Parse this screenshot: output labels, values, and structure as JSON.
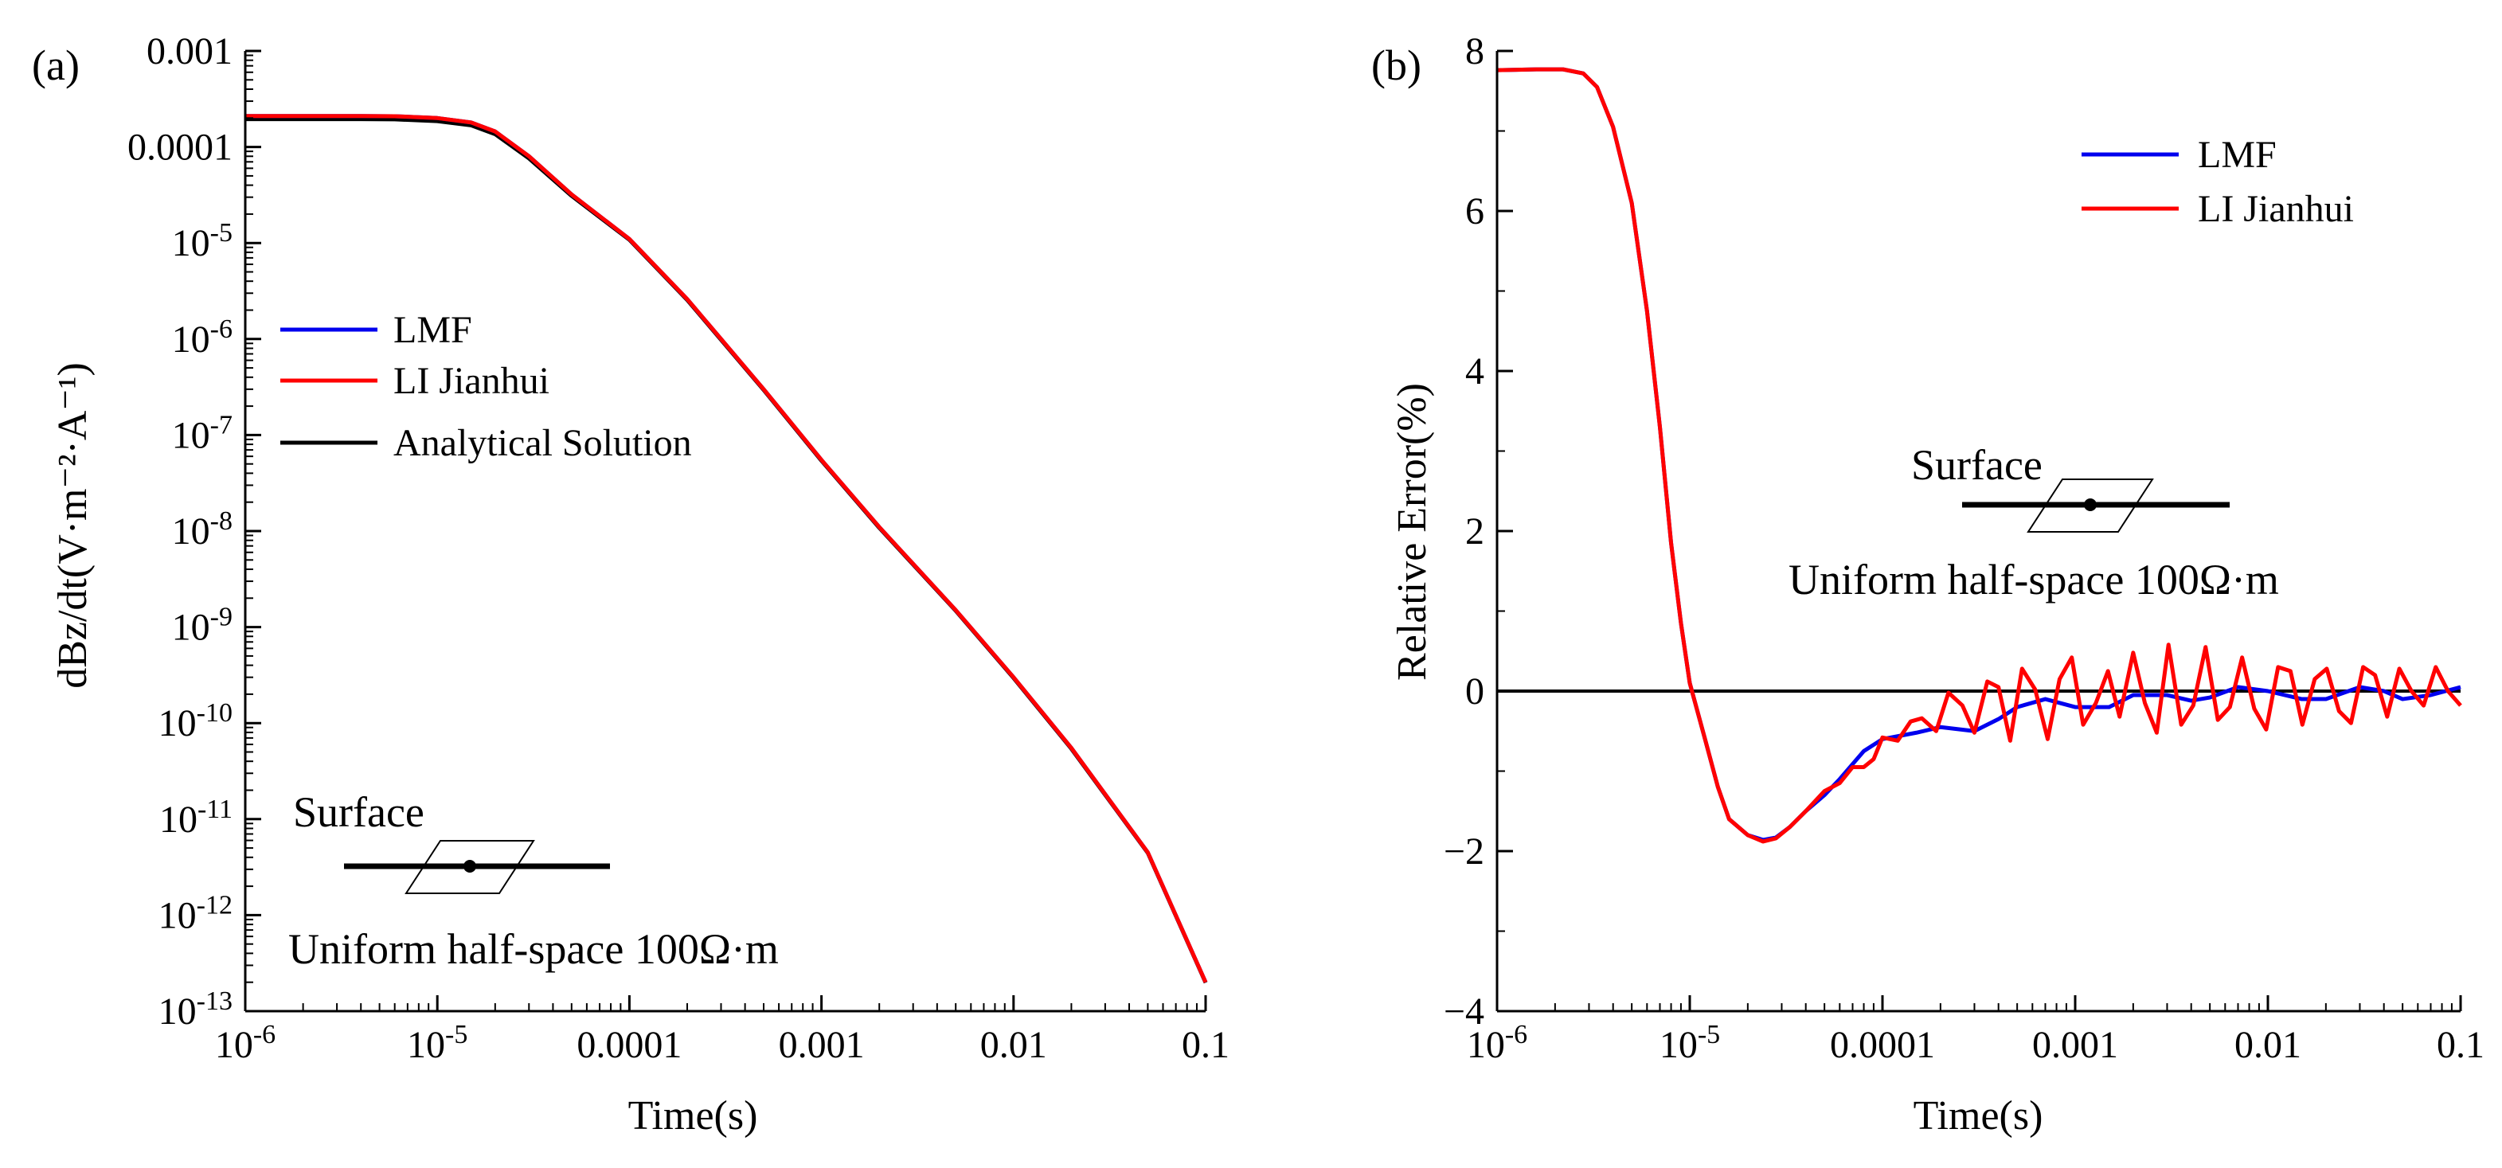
{
  "figure": {
    "colors": {
      "lmf": "#0000ee",
      "li": "#ff0000",
      "analytic": "#000000",
      "axis": "#000000"
    },
    "annotation": {
      "surface": "Surface",
      "halfspace": "Uniform half-space 100Ω·m"
    }
  },
  "chart_data": [
    {
      "id": "a",
      "panel_label": "(a)",
      "type": "line",
      "xscale": "log",
      "yscale": "log",
      "xlabel": "Time(s)",
      "ylabel": "dBz/dt(V·m⁻²·A⁻¹)",
      "xlim": [
        1e-06,
        0.1
      ],
      "ylim": [
        1e-13,
        0.001
      ],
      "grid": false,
      "legend_position": "center-left",
      "x_ticks": [
        {
          "value": 1e-06,
          "base": "10",
          "exp": "-6",
          "text": ""
        },
        {
          "value": 1e-05,
          "base": "10",
          "exp": "-5",
          "text": ""
        },
        {
          "value": 0.0001,
          "base": "",
          "exp": "",
          "text": "0.0001"
        },
        {
          "value": 0.001,
          "base": "",
          "exp": "",
          "text": "0.001"
        },
        {
          "value": 0.01,
          "base": "",
          "exp": "",
          "text": "0.01"
        },
        {
          "value": 0.1,
          "base": "",
          "exp": "",
          "text": "0.1"
        }
      ],
      "y_ticks": [
        {
          "value": 0.001,
          "base": "",
          "exp": "",
          "text": "0.001"
        },
        {
          "value": 0.0001,
          "base": "",
          "exp": "",
          "text": "0.0001"
        },
        {
          "value": 1e-05,
          "base": "10",
          "exp": "-5",
          "text": ""
        },
        {
          "value": 1e-06,
          "base": "10",
          "exp": "-6",
          "text": ""
        },
        {
          "value": 1e-07,
          "base": "10",
          "exp": "-7",
          "text": ""
        },
        {
          "value": 1e-08,
          "base": "10",
          "exp": "-8",
          "text": ""
        },
        {
          "value": 1e-09,
          "base": "10",
          "exp": "-9",
          "text": ""
        },
        {
          "value": 1e-10,
          "base": "10",
          "exp": "-10",
          "text": ""
        },
        {
          "value": 1e-11,
          "base": "10",
          "exp": "-11",
          "text": ""
        },
        {
          "value": 1e-12,
          "base": "10",
          "exp": "-12",
          "text": ""
        },
        {
          "value": 1e-13,
          "base": "10",
          "exp": "-13",
          "text": ""
        }
      ],
      "series": [
        {
          "name": "LMF",
          "color": "#0000ee",
          "x": [
            1e-06,
            2e-06,
            4e-06,
            6e-06,
            1e-05,
            1.5e-05,
            2e-05,
            3e-05,
            5e-05,
            0.0001,
            0.0002,
            0.0005,
            0.001,
            0.002,
            0.005,
            0.01,
            0.02,
            0.05,
            0.1
          ],
          "y": [
            0.00021,
            0.00021,
            0.00021,
            0.000209,
            0.0002,
            0.00018,
            0.000145,
            8e-05,
            3.2e-05,
            1.1e-05,
            2.6e-06,
            3e-07,
            5.5e-08,
            1.1e-08,
            1.5e-09,
            3e-10,
            5.5e-11,
            4.5e-12,
            2e-13
          ]
        },
        {
          "name": "LI Jianhui",
          "color": "#ff0000",
          "x": [
            1e-06,
            2e-06,
            4e-06,
            6e-06,
            1e-05,
            1.5e-05,
            2e-05,
            3e-05,
            5e-05,
            0.0001,
            0.0002,
            0.0005,
            0.001,
            0.002,
            0.005,
            0.01,
            0.02,
            0.05,
            0.1
          ],
          "y": [
            0.00021,
            0.00021,
            0.00021,
            0.000209,
            0.0002,
            0.00018,
            0.000145,
            8e-05,
            3.2e-05,
            1.1e-05,
            2.6e-06,
            3e-07,
            5.5e-08,
            1.1e-08,
            1.5e-09,
            3e-10,
            5.5e-11,
            4.5e-12,
            2e-13
          ]
        },
        {
          "name": "Analytical Solution",
          "color": "#000000",
          "x": [
            1e-06,
            2e-06,
            4e-06,
            6e-06,
            1e-05,
            1.5e-05,
            2e-05,
            3e-05,
            5e-05,
            0.0001,
            0.0002,
            0.0005,
            0.001,
            0.002,
            0.005,
            0.01,
            0.02,
            0.05,
            0.1
          ],
          "y": [
            0.000195,
            0.000195,
            0.000195,
            0.000194,
            0.000186,
            0.000168,
            0.000136,
            7.6e-05,
            3.1e-05,
            1.08e-05,
            2.55e-06,
            2.95e-07,
            5.4e-08,
            1.08e-08,
            1.48e-09,
            2.95e-10,
            5.4e-11,
            4.45e-12,
            1.98e-13
          ]
        }
      ]
    },
    {
      "id": "b",
      "panel_label": "(b)",
      "type": "line",
      "xscale": "log",
      "yscale": "linear",
      "xlabel": "Time(s)",
      "ylabel": "Relative Error(%)",
      "xlim": [
        1e-06,
        0.1
      ],
      "ylim": [
        -4,
        8
      ],
      "grid": false,
      "legend_position": "top-right",
      "x_ticks": [
        {
          "value": 1e-06,
          "base": "10",
          "exp": "-6",
          "text": ""
        },
        {
          "value": 1e-05,
          "base": "10",
          "exp": "-5",
          "text": ""
        },
        {
          "value": 0.0001,
          "base": "",
          "exp": "",
          "text": "0.0001"
        },
        {
          "value": 0.001,
          "base": "",
          "exp": "",
          "text": "0.001"
        },
        {
          "value": 0.01,
          "base": "",
          "exp": "",
          "text": "0.01"
        },
        {
          "value": 0.1,
          "base": "",
          "exp": "",
          "text": "0.1"
        }
      ],
      "y_ticks": [
        {
          "value": 8,
          "text": "8"
        },
        {
          "value": 6,
          "text": "6"
        },
        {
          "value": 4,
          "text": "4"
        },
        {
          "value": 2,
          "text": "2"
        },
        {
          "value": 0,
          "text": "0"
        },
        {
          "value": -2,
          "text": "−2"
        },
        {
          "value": -4,
          "text": "−4"
        }
      ],
      "reference_line": {
        "y": 0,
        "color": "#000000"
      },
      "series": [
        {
          "name": "LMF",
          "color": "#0000ee",
          "x": [
            1e-06,
            1.6e-06,
            2.2e-06,
            2.8e-06,
            3.3e-06,
            4e-06,
            5e-06,
            6e-06,
            7e-06,
            8e-06,
            9e-06,
            1e-05,
            1.2e-05,
            1.4e-05,
            1.6e-05,
            2e-05,
            2.4e-05,
            2.8e-05,
            3.3e-05,
            4e-05,
            5e-05,
            6e-05,
            8e-05,
            0.0001,
            0.00015,
            0.0002,
            0.0003,
            0.0004,
            0.0005,
            0.0007,
            0.001,
            0.0015,
            0.002,
            0.003,
            0.004,
            0.005,
            0.007,
            0.01,
            0.015,
            0.02,
            0.03,
            0.04,
            0.05,
            0.07,
            0.1
          ],
          "y": [
            7.76,
            7.77,
            7.77,
            7.72,
            7.55,
            7.05,
            6.1,
            4.75,
            3.3,
            1.85,
            0.85,
            0.1,
            -0.6,
            -1.2,
            -1.6,
            -1.8,
            -1.86,
            -1.83,
            -1.7,
            -1.5,
            -1.3,
            -1.1,
            -0.75,
            -0.6,
            -0.52,
            -0.45,
            -0.5,
            -0.35,
            -0.2,
            -0.1,
            -0.2,
            -0.2,
            -0.05,
            -0.05,
            -0.12,
            -0.08,
            0.05,
            0.0,
            -0.1,
            -0.1,
            0.05,
            0.0,
            -0.1,
            -0.05,
            0.05
          ]
        },
        {
          "name": "LI Jianhui",
          "color": "#ff0000",
          "x": [
            1e-06,
            1.6e-06,
            2.2e-06,
            2.8e-06,
            3.3e-06,
            4e-06,
            5e-06,
            6e-06,
            7e-06,
            8e-06,
            9e-06,
            1e-05,
            1.2e-05,
            1.4e-05,
            1.6e-05,
            2e-05,
            2.4e-05,
            2.8e-05,
            3.3e-05,
            4e-05,
            5e-05,
            6e-05,
            7e-05,
            8e-05,
            9e-05,
            0.0001,
            0.00012,
            0.00014,
            0.00016,
            0.00019,
            0.00022,
            0.00026,
            0.0003,
            0.00035,
            0.0004,
            0.00046,
            0.00053,
            0.00062,
            0.00072,
            0.00083,
            0.00096,
            0.0011,
            0.00128,
            0.00148,
            0.0017,
            0.002,
            0.0023,
            0.00265,
            0.00305,
            0.00355,
            0.0041,
            0.00475,
            0.0055,
            0.00635,
            0.00735,
            0.0085,
            0.0098,
            0.0113,
            0.0131,
            0.0151,
            0.0175,
            0.0202,
            0.0234,
            0.027,
            0.0312,
            0.036,
            0.0416,
            0.0481,
            0.0556,
            0.0643,
            0.0743,
            0.086,
            0.1
          ],
          "y": [
            7.76,
            7.77,
            7.77,
            7.72,
            7.55,
            7.05,
            6.1,
            4.75,
            3.3,
            1.85,
            0.85,
            0.1,
            -0.6,
            -1.2,
            -1.6,
            -1.8,
            -1.88,
            -1.84,
            -1.7,
            -1.5,
            -1.25,
            -1.15,
            -0.95,
            -0.95,
            -0.85,
            -0.58,
            -0.62,
            -0.38,
            -0.34,
            -0.5,
            -0.02,
            -0.18,
            -0.52,
            0.12,
            0.05,
            -0.62,
            0.28,
            0.02,
            -0.6,
            0.15,
            0.42,
            -0.42,
            -0.15,
            0.25,
            -0.32,
            0.48,
            -0.15,
            -0.52,
            0.58,
            -0.42,
            -0.18,
            0.55,
            -0.36,
            -0.2,
            0.42,
            -0.22,
            -0.48,
            0.3,
            0.25,
            -0.42,
            0.15,
            0.28,
            -0.25,
            -0.4,
            0.3,
            0.2,
            -0.32,
            0.28,
            0.0,
            -0.18,
            0.3,
            0.0,
            -0.18
          ]
        }
      ]
    }
  ]
}
